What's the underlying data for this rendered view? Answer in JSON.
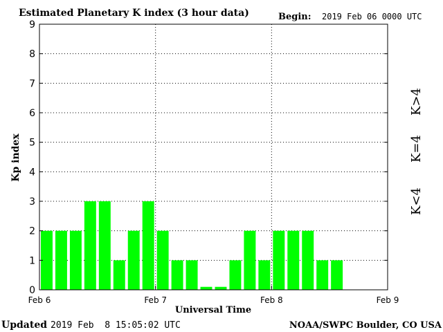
{
  "header": {
    "title": "Estimated Planetary K index (3 hour data)",
    "begin_label": "Begin:",
    "begin_value": "2019 Feb 06 0000 UTC"
  },
  "footer": {
    "updated_label": "Updated",
    "updated_value": "2019 Feb  8 15:05:02 UTC",
    "source": "NOAA/SWPC Boulder, CO USA"
  },
  "legend": {
    "low": {
      "label": "K<4",
      "color": "#33dd33"
    },
    "mid": {
      "label": "K=4",
      "color": "#ffcc00"
    },
    "high": {
      "label": "K>4",
      "color": "#ff3300"
    }
  },
  "chart_data": {
    "type": "bar",
    "title": "Estimated Planetary K index (3 hour data)",
    "xlabel": "Universal Time",
    "ylabel": "Kp index",
    "ylim": [
      0,
      9
    ],
    "yticks": [
      "0",
      "1",
      "2",
      "3",
      "4",
      "5",
      "6",
      "7",
      "8",
      "9"
    ],
    "xticks": [
      "Feb 6",
      "Feb 7",
      "Feb 8",
      "Feb 9"
    ],
    "grid": "dotted, at each integer Kp and at day boundaries",
    "bar_color": "#00ff00",
    "interval_hours": 3,
    "values": [
      2,
      2,
      2,
      3,
      3,
      1,
      2,
      3,
      2,
      1,
      1,
      0.1,
      0.1,
      1,
      2,
      1,
      2,
      2,
      2,
      1,
      1
    ]
  }
}
